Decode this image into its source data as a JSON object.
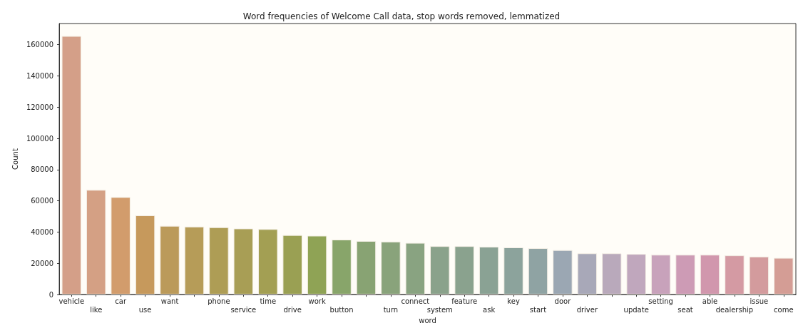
{
  "chart_data": {
    "type": "bar",
    "title": "Word frequencies of Welcome Call data, stop words removed, lemmatized",
    "xlabel": "word",
    "ylabel": "Count",
    "categories": [
      "vehicle",
      "like",
      "car",
      "use",
      "want",
      null,
      "phone",
      "service",
      "time",
      "drive",
      "work",
      "button",
      null,
      "turn",
      "connect",
      "system",
      "feature",
      "ask",
      "key",
      "start",
      "door",
      "driver",
      null,
      "update",
      "setting",
      "seat",
      "able",
      "dealership",
      "issue",
      "come"
    ],
    "values": [
      165500,
      67000,
      62400,
      50700,
      44000,
      43500,
      43100,
      42300,
      41900,
      38100,
      37700,
      35200,
      34300,
      33900,
      33100,
      31000,
      31000,
      30600,
      30200,
      29700,
      28500,
      26400,
      26400,
      26000,
      25500,
      25500,
      25500,
      25100,
      24300,
      23500
    ],
    "colors": [
      "#d49f88",
      "#d4a084",
      "#d29c6c",
      "#c6995c",
      "#bb9a5a",
      "#b69c58",
      "#ae9d55",
      "#a89e55",
      "#a39f53",
      "#9aa053",
      "#8fa355",
      "#88a56a",
      "#88a373",
      "#89a37b",
      "#89a381",
      "#8aa28b",
      "#8aa28e",
      "#8aa294",
      "#8ca39c",
      "#8fa3a3",
      "#9ba7b3",
      "#a8a8b8",
      "#b9a9bb",
      "#c0a7bd",
      "#c8a2bb",
      "#cd9bb5",
      "#d197ad",
      "#d49aa3",
      "#d39b9d",
      "#d49d95"
    ],
    "ylim": [
      0,
      173500
    ],
    "yticks": [
      0,
      20000,
      40000,
      60000,
      80000,
      100000,
      120000,
      140000,
      160000
    ],
    "grid": false
  }
}
